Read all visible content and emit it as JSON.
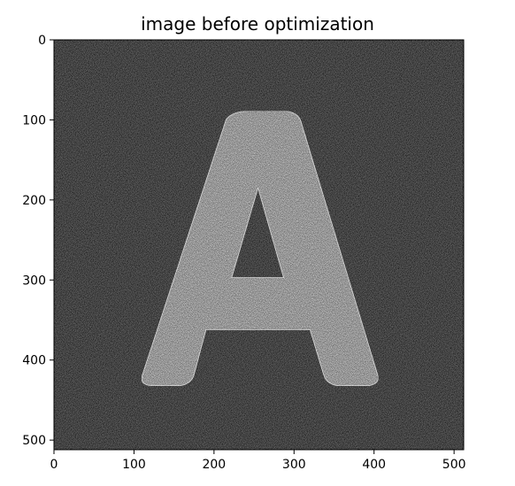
{
  "chart_data": {
    "type": "image",
    "title": "image before optimization",
    "colormap": "gray",
    "image_size": [
      512,
      512
    ],
    "xlim": [
      0,
      512
    ],
    "ylim": [
      512,
      0
    ],
    "x_ticks": [
      0,
      100,
      200,
      300,
      400,
      500
    ],
    "y_ticks": [
      0,
      100,
      200,
      300,
      400,
      500
    ],
    "x_tick_labels": [
      "0",
      "100",
      "200",
      "300",
      "400",
      "500"
    ],
    "y_tick_labels": [
      "0",
      "100",
      "200",
      "300",
      "400",
      "500"
    ],
    "subject": "A",
    "background_level": 0.1,
    "foreground_level": 0.42,
    "noise": "speckle"
  }
}
